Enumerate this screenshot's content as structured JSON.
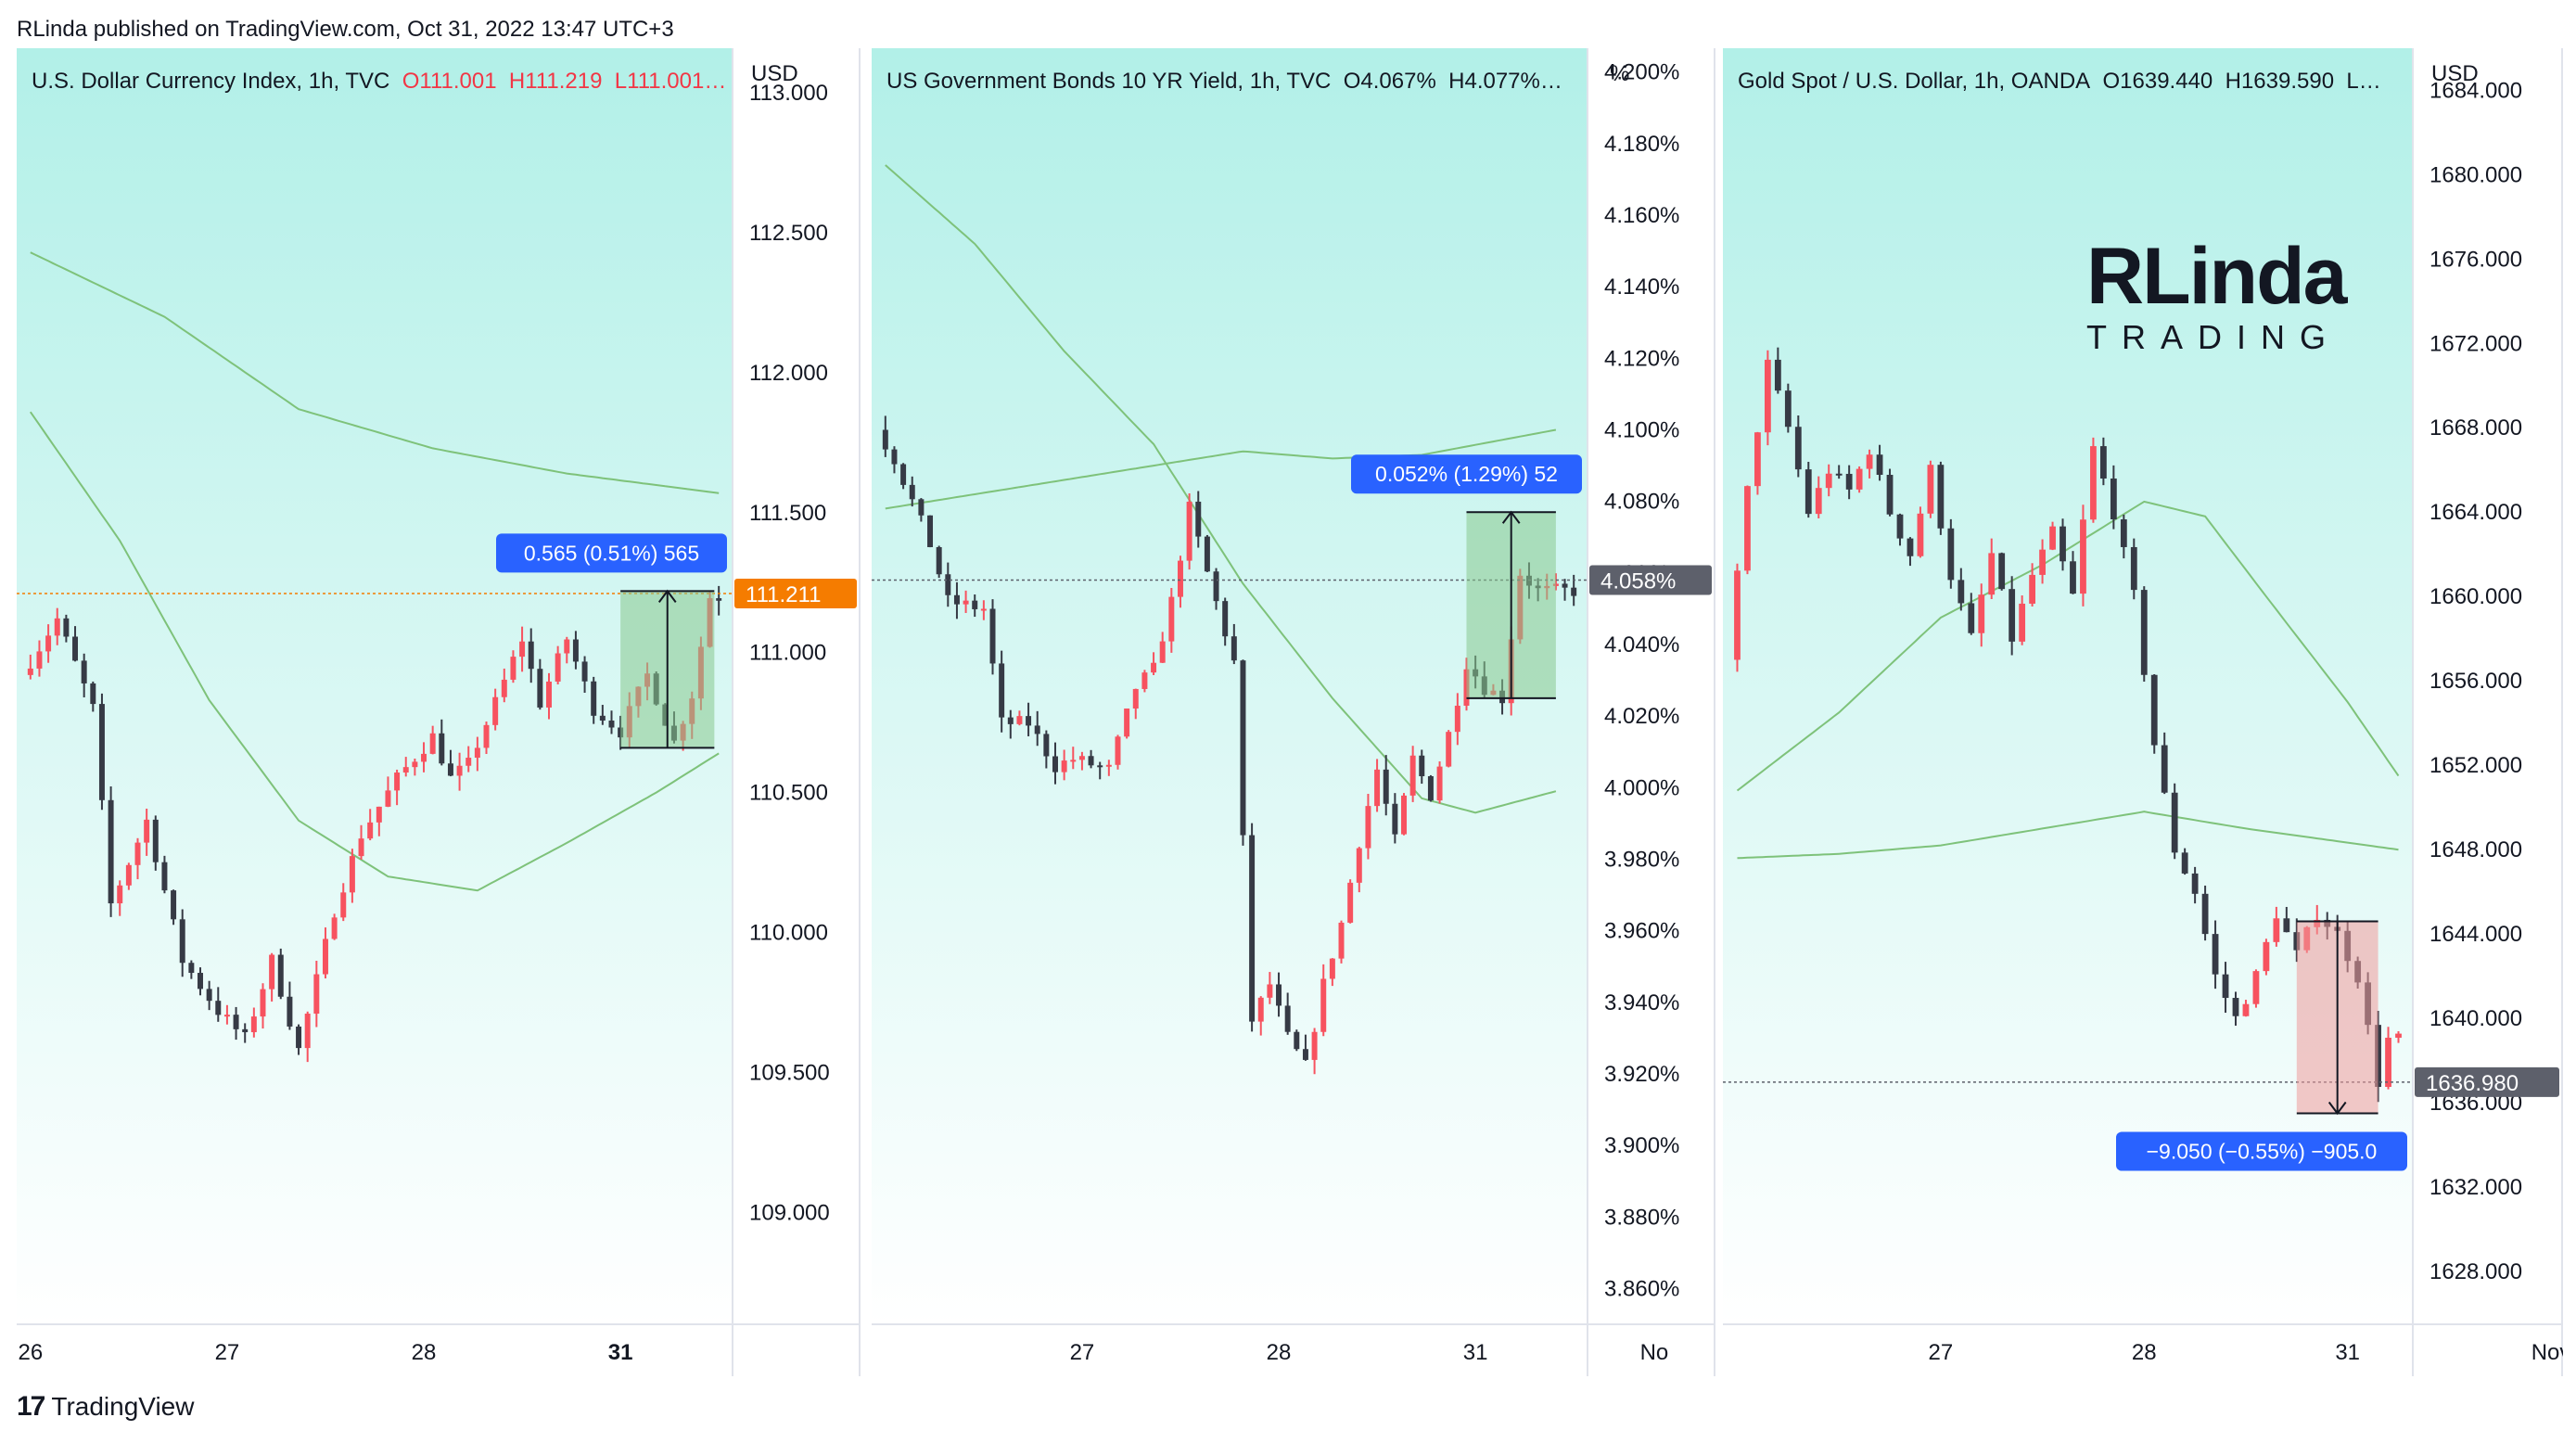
{
  "header_text": "RLinda published on TradingView.com, Oct 31, 2022 13:47 UTC+3",
  "footer_text": "TradingView",
  "brand": {
    "line1": "RLinda",
    "line2": "TRADING"
  },
  "colors": {
    "bg_top": "#b2f0e8",
    "bg_bottom": "#ffffff",
    "up": "#f7525f",
    "down": "#363a45",
    "ma": "#7ec27a",
    "measure_up": "#89c98e",
    "measure_down": "#ef9a9a",
    "label_blue": "#2962ff",
    "last_orange": "#f57c00",
    "last_gray": "#5d606b"
  },
  "chart_data": [
    {
      "type": "candlestick",
      "title": {
        "name": "U.S. Dollar Currency Index, 1h, TVC",
        "o": "O111.001",
        "h": "H111.219",
        "l": "L111.001…"
      },
      "unit": "USD",
      "ylim": [
        108.6,
        113.1
      ],
      "ticks": [
        "113.000",
        "112.500",
        "112.000",
        "111.500",
        "111.000",
        "110.500",
        "110.000",
        "109.500",
        "109.000"
      ],
      "tick_values": [
        113.0,
        112.5,
        112.0,
        111.5,
        111.0,
        110.5,
        110.0,
        109.5,
        109.0
      ],
      "x_labels": [
        {
          "t": "26",
          "x": 0
        },
        {
          "t": "27",
          "x": 22
        },
        {
          "t": "28",
          "x": 44
        },
        {
          "t": "31",
          "x": 66,
          "bold": true
        }
      ],
      "n": 78,
      "path": [
        [
          0,
          110.92
        ],
        [
          4,
          111.12
        ],
        [
          8,
          110.8
        ],
        [
          10,
          110.1
        ],
        [
          14,
          110.4
        ],
        [
          18,
          109.9
        ],
        [
          22,
          109.72
        ],
        [
          25,
          109.62
        ],
        [
          28,
          109.9
        ],
        [
          31,
          109.58
        ],
        [
          35,
          110.08
        ],
        [
          38,
          110.35
        ],
        [
          42,
          110.55
        ],
        [
          46,
          110.7
        ],
        [
          48,
          110.55
        ],
        [
          50,
          110.6
        ],
        [
          53,
          110.82
        ],
        [
          56,
          111.05
        ],
        [
          58,
          110.82
        ],
        [
          61,
          111.05
        ],
        [
          64,
          110.8
        ],
        [
          67,
          110.72
        ],
        [
          70,
          110.92
        ],
        [
          73,
          110.68
        ],
        [
          75,
          110.85
        ],
        [
          77,
          111.2
        ]
      ],
      "ma_slow": [
        [
          0,
          112.43
        ],
        [
          15,
          112.2
        ],
        [
          30,
          111.87
        ],
        [
          45,
          111.73
        ],
        [
          60,
          111.64
        ],
        [
          77,
          111.57
        ]
      ],
      "ma_fast": [
        [
          0,
          111.86
        ],
        [
          10,
          111.4
        ],
        [
          20,
          110.83
        ],
        [
          30,
          110.4
        ],
        [
          40,
          110.2
        ],
        [
          50,
          110.15
        ],
        [
          60,
          110.32
        ],
        [
          70,
          110.5
        ],
        [
          77,
          110.64
        ]
      ],
      "last": {
        "value": 111.211,
        "label": "111.211"
      },
      "measure": {
        "from_i": 66,
        "to_i": 76.5,
        "y_low": 110.66,
        "y_high": 111.22,
        "dir": "up",
        "label": "0.565 (0.51%) 565"
      }
    },
    {
      "type": "candlestick",
      "title": {
        "name": "US Government Bonds 10 YR Yield, 1h, TVC",
        "o": "O4.067%",
        "h": "H4.077%…"
      },
      "unit": "%",
      "ylim": [
        3.85,
        4.202
      ],
      "ticks": [
        "4.200%",
        "4.180%",
        "4.160%",
        "4.140%",
        "4.120%",
        "4.100%",
        "4.080%",
        "4.060%",
        "4.040%",
        "4.020%",
        "4.000%",
        "3.980%",
        "3.960%",
        "3.940%",
        "3.920%",
        "3.900%",
        "3.880%",
        "3.860%"
      ],
      "tick_values": [
        4.2,
        4.18,
        4.16,
        4.14,
        4.12,
        4.1,
        4.08,
        4.06,
        4.04,
        4.02,
        4.0,
        3.98,
        3.96,
        3.94,
        3.92,
        3.9,
        3.88,
        3.86
      ],
      "x_labels": [
        {
          "t": "27",
          "x": 22
        },
        {
          "t": "28",
          "x": 44
        },
        {
          "t": "31",
          "x": 66
        },
        {
          "t": "No",
          "x": 86
        }
      ],
      "n": 78,
      "path": [
        [
          0,
          4.1
        ],
        [
          2,
          4.092
        ],
        [
          6,
          4.068
        ],
        [
          8,
          4.052
        ],
        [
          12,
          4.05
        ],
        [
          14,
          4.018
        ],
        [
          17,
          4.018
        ],
        [
          20,
          4.006
        ],
        [
          22,
          4.008
        ],
        [
          26,
          4.005
        ],
        [
          29,
          4.028
        ],
        [
          31,
          4.033
        ],
        [
          33,
          4.052
        ],
        [
          35,
          4.078
        ],
        [
          37,
          4.06
        ],
        [
          40,
          4.035
        ],
        [
          42,
          3.935
        ],
        [
          44,
          3.945
        ],
        [
          46,
          3.93
        ],
        [
          48,
          3.922
        ],
        [
          50,
          3.945
        ],
        [
          52,
          3.962
        ],
        [
          54,
          3.985
        ],
        [
          56,
          4.005
        ],
        [
          58,
          3.985
        ],
        [
          60,
          4.008
        ],
        [
          62,
          3.998
        ],
        [
          64,
          4.015
        ],
        [
          66,
          4.035
        ],
        [
          68,
          4.028
        ],
        [
          70,
          4.025
        ],
        [
          72,
          4.06
        ],
        [
          74,
          4.055
        ]
      ],
      "ma_slow": [
        [
          0,
          4.078
        ],
        [
          15,
          4.084
        ],
        [
          30,
          4.09
        ],
        [
          40,
          4.094
        ],
        [
          50,
          4.092
        ],
        [
          60,
          4.093
        ],
        [
          75,
          4.1
        ]
      ],
      "ma_fast": [
        [
          0,
          4.174
        ],
        [
          10,
          4.152
        ],
        [
          20,
          4.122
        ],
        [
          30,
          4.096
        ],
        [
          40,
          4.057
        ],
        [
          50,
          4.025
        ],
        [
          60,
          3.997
        ],
        [
          66,
          3.993
        ],
        [
          75,
          3.999
        ]
      ],
      "last": {
        "value": 4.058,
        "label": "4.058%"
      },
      "measure": {
        "from_i": 65,
        "to_i": 75,
        "y_low": 4.025,
        "y_high": 4.077,
        "dir": "up",
        "label": "0.052% (1.29%) 52"
      }
    },
    {
      "type": "candlestick",
      "title": {
        "name": "Gold Spot / U.S. Dollar, 1h, OANDA",
        "o": "O1639.440",
        "h": "H1639.590",
        "l": "L…"
      },
      "unit": "USD",
      "ylim": [
        1625.5,
        1685.2
      ],
      "ticks": [
        "1684.000",
        "1680.000",
        "1676.000",
        "1672.000",
        "1668.000",
        "1664.000",
        "1660.000",
        "1656.000",
        "1652.000",
        "1648.000",
        "1644.000",
        "1640.000",
        "1636.000",
        "1632.000",
        "1628.000"
      ],
      "tick_values": [
        1684,
        1680,
        1676,
        1672,
        1668,
        1664,
        1660,
        1656,
        1652,
        1648,
        1644,
        1640,
        1636,
        1632,
        1628
      ],
      "x_labels": [
        {
          "t": "27",
          "x": 20
        },
        {
          "t": "28",
          "x": 40
        },
        {
          "t": "31",
          "x": 60
        },
        {
          "t": "Nov",
          "x": 80
        }
      ],
      "n": 66,
      "path": [
        [
          0,
          1657
        ],
        [
          2,
          1665
        ],
        [
          4,
          1671
        ],
        [
          6,
          1668
        ],
        [
          8,
          1664
        ],
        [
          10,
          1666
        ],
        [
          12,
          1665
        ],
        [
          14,
          1667
        ],
        [
          16,
          1664
        ],
        [
          18,
          1662
        ],
        [
          20,
          1666
        ],
        [
          22,
          1661
        ],
        [
          24,
          1658
        ],
        [
          26,
          1662
        ],
        [
          28,
          1658
        ],
        [
          30,
          1661
        ],
        [
          32,
          1663
        ],
        [
          34,
          1660
        ],
        [
          36,
          1667
        ],
        [
          38,
          1664
        ],
        [
          40,
          1660
        ],
        [
          42,
          1653
        ],
        [
          44,
          1648
        ],
        [
          46,
          1646
        ],
        [
          48,
          1642
        ],
        [
          50,
          1640
        ],
        [
          52,
          1642
        ],
        [
          54,
          1645
        ],
        [
          56,
          1643
        ],
        [
          58,
          1645
        ],
        [
          60,
          1644
        ],
        [
          62,
          1642
        ],
        [
          64,
          1637
        ],
        [
          65,
          1639
        ]
      ],
      "ma_slow": [
        [
          0,
          1647.6
        ],
        [
          10,
          1647.8
        ],
        [
          20,
          1648.2
        ],
        [
          30,
          1649
        ],
        [
          40,
          1649.8
        ],
        [
          50,
          1649
        ],
        [
          65,
          1648
        ]
      ],
      "ma_fast": [
        [
          0,
          1650.8
        ],
        [
          10,
          1654.5
        ],
        [
          20,
          1659
        ],
        [
          30,
          1661.5
        ],
        [
          40,
          1664.5
        ],
        [
          46,
          1663.8
        ],
        [
          52,
          1660
        ],
        [
          60,
          1655
        ],
        [
          65,
          1651.5
        ]
      ],
      "last": {
        "value": 1636.98,
        "label": "1636.980"
      },
      "measure": {
        "from_i": 55,
        "to_i": 63,
        "y_low": 1635.5,
        "y_high": 1644.6,
        "dir": "down",
        "label": "−9.050 (−0.55%) −905.0"
      }
    }
  ]
}
